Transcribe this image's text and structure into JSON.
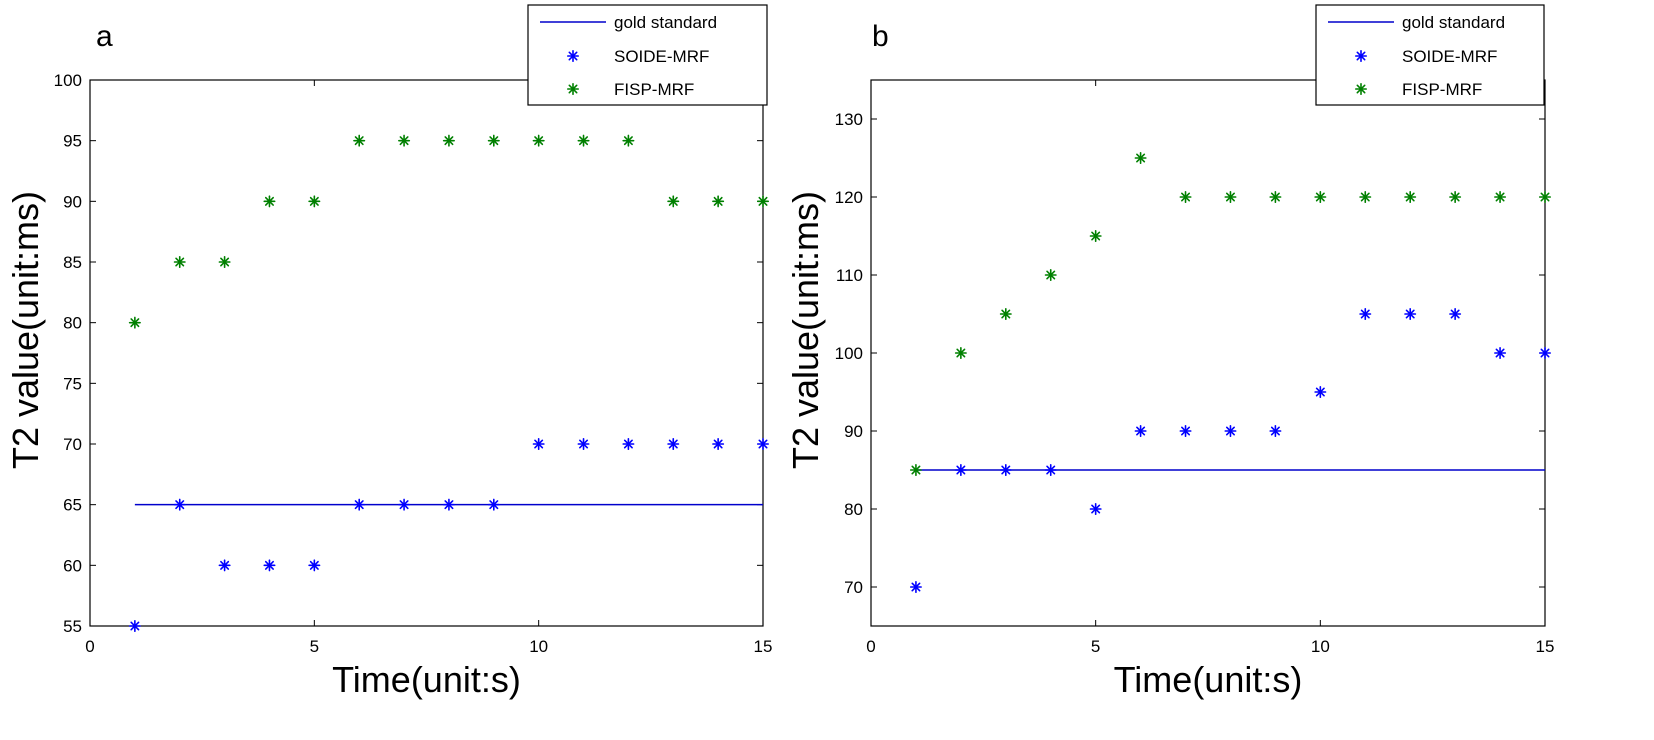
{
  "colors": {
    "gold": "#0000cc",
    "soide": "#0000ff",
    "fisp": "#008000",
    "axis": "#000000"
  },
  "chart_data": [
    {
      "panel_label": "a",
      "type": "scatter",
      "title": "",
      "xlabel": "Time(unit:s)",
      "ylabel": "T2 value(unit:ms)",
      "xlim": [
        0,
        15
      ],
      "ylim": [
        55,
        100
      ],
      "xticks": [
        0,
        5,
        10,
        15
      ],
      "yticks": [
        55,
        60,
        65,
        70,
        75,
        80,
        85,
        90,
        95,
        100
      ],
      "grid": false,
      "legend": {
        "position": "top-right",
        "entries": [
          "gold standard",
          "SOIDE-MRF",
          "FISP-MRF"
        ]
      },
      "series": [
        {
          "name": "gold standard",
          "type": "line",
          "x": [
            1,
            15
          ],
          "y": [
            65,
            65
          ]
        },
        {
          "name": "SOIDE-MRF",
          "type": "scatter",
          "x": [
            1,
            2,
            3,
            4,
            5,
            6,
            7,
            8,
            9,
            10,
            11,
            12,
            13,
            14,
            15
          ],
          "y": [
            55,
            65,
            60,
            60,
            60,
            65,
            65,
            65,
            65,
            70,
            70,
            70,
            70,
            70,
            70
          ]
        },
        {
          "name": "FISP-MRF",
          "type": "scatter",
          "x": [
            1,
            2,
            3,
            4,
            5,
            6,
            7,
            8,
            9,
            10,
            11,
            12,
            13,
            14,
            15
          ],
          "y": [
            80,
            85,
            85,
            90,
            90,
            95,
            95,
            95,
            95,
            95,
            95,
            95,
            90,
            90,
            90
          ]
        }
      ]
    },
    {
      "panel_label": "b",
      "type": "scatter",
      "title": "",
      "xlabel": "Time(unit:s)",
      "ylabel": "T2 value(unit:ms)",
      "xlim": [
        0,
        15
      ],
      "ylim": [
        65,
        135
      ],
      "xticks": [
        0,
        5,
        10,
        15
      ],
      "yticks": [
        70,
        80,
        90,
        100,
        110,
        120,
        130
      ],
      "grid": false,
      "legend": {
        "position": "top-right",
        "entries": [
          "gold standard",
          "SOIDE-MRF",
          "FISP-MRF"
        ]
      },
      "series": [
        {
          "name": "gold standard",
          "type": "line",
          "x": [
            1,
            15
          ],
          "y": [
            85,
            85
          ]
        },
        {
          "name": "SOIDE-MRF",
          "type": "scatter",
          "x": [
            1,
            2,
            3,
            4,
            5,
            6,
            7,
            8,
            9,
            10,
            11,
            12,
            13,
            14,
            15
          ],
          "y": [
            70,
            85,
            85,
            85,
            80,
            90,
            90,
            90,
            90,
            95,
            105,
            105,
            105,
            100,
            100
          ]
        },
        {
          "name": "FISP-MRF",
          "type": "scatter",
          "x": [
            1,
            2,
            3,
            4,
            5,
            6,
            7,
            8,
            9,
            10,
            11,
            12,
            13,
            14,
            15
          ],
          "y": [
            85,
            100,
            105,
            110,
            115,
            125,
            120,
            120,
            120,
            120,
            120,
            120,
            120,
            120,
            120
          ]
        }
      ]
    }
  ]
}
